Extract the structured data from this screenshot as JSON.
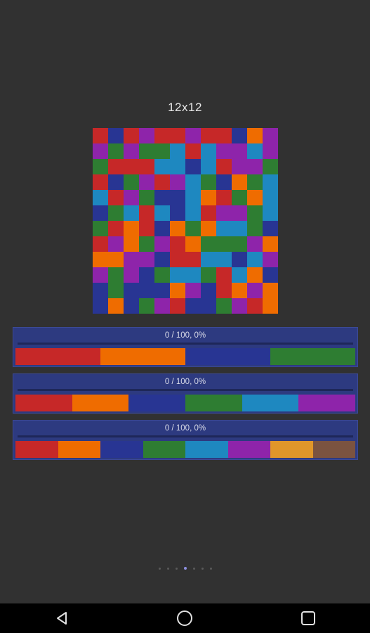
{
  "board": {
    "title": "12x12",
    "colors": {
      "R": "#c62828",
      "B": "#283593",
      "P": "#8e24aa",
      "O": "#ef6c00",
      "G": "#2e7d32",
      "T": "#1e88c0",
      "Y": "#e0962a",
      "N": "#7b5340"
    },
    "rows": [
      "RBRPRRPRRBOP",
      "PGPGGTRTPPTP",
      "GRRRTTBTRPPG",
      "RBGPRPTGBOGT",
      "TRPGBBTORGOT",
      "BGTRTBTRPPGT",
      "GRORBOGOTTGB",
      "RPOGPROGGGPO",
      "OOPPBRRTTBTP",
      "PGPBGTTGRTOB",
      "BGBBBOPBROPO",
      "BOBGPRBBGPRO"
    ]
  },
  "panels": [
    {
      "label": "0 / 100, 0%",
      "progress": 0,
      "swatches": [
        "#c62828",
        "#ef6c00",
        "#283593",
        "#2e7d32"
      ]
    },
    {
      "label": "0 / 100, 0%",
      "progress": 0,
      "swatches": [
        "#c62828",
        "#ef6c00",
        "#283593",
        "#2e7d32",
        "#1e88c0",
        "#8e24aa"
      ]
    },
    {
      "label": "0 / 100, 0%",
      "progress": 0,
      "swatches": [
        "#c62828",
        "#ef6c00",
        "#283593",
        "#2e7d32",
        "#1e88c0",
        "#8e24aa",
        "#e0962a",
        "#7b5340"
      ]
    }
  ],
  "pager": {
    "count": 7,
    "active": 3
  },
  "navbar": {
    "buttons": [
      "back-icon",
      "home-icon",
      "recents-icon"
    ]
  }
}
